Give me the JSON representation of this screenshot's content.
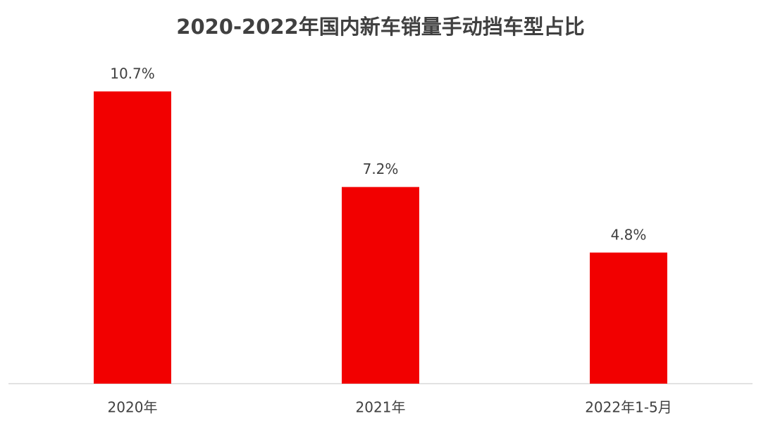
{
  "chart_data": {
    "type": "bar",
    "title": "2020-2022年国内新车销量手动挡车型占比",
    "categories": [
      "2020年",
      "2021年",
      "2022年1-5月"
    ],
    "values": [
      10.7,
      7.2,
      4.8
    ],
    "value_labels": [
      "10.7%",
      "7.2%",
      "4.8%"
    ],
    "color": "#f20000"
  }
}
